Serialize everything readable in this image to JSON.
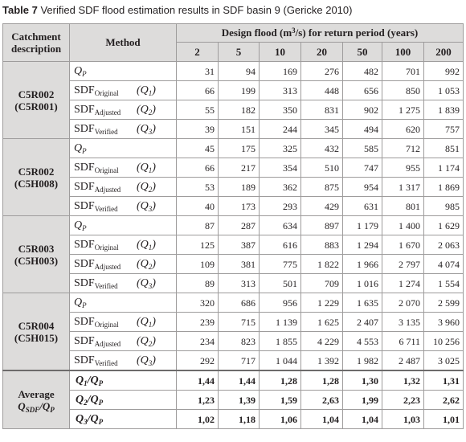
{
  "caption": {
    "label": "Table 7",
    "text": "Verified SDF flood estimation results in SDF basin 9 (Gericke 2010)"
  },
  "header": {
    "catchment": "Catchment description",
    "method": "Method",
    "design_flood_pre": "Design flood (m",
    "design_flood_sup": "3",
    "design_flood_post": "/s) for return period (years)",
    "periods": [
      "2",
      "5",
      "10",
      "20",
      "50",
      "100",
      "200"
    ]
  },
  "methods": {
    "qp": {
      "main": "Q",
      "sub": "P"
    },
    "original": {
      "main": "SDF",
      "sub": "Original",
      "q": "(Q",
      "qsub": "1",
      "qclose": ")"
    },
    "adjusted": {
      "main": "SDF",
      "sub": "Adjusted",
      "q": "(Q",
      "qsub": "2",
      "qclose": ")"
    },
    "verified": {
      "main": "SDF",
      "sub": "Verified",
      "q": "(Q",
      "qsub": "3",
      "qclose": ")"
    }
  },
  "groups": [
    {
      "name": "C5R002",
      "alt": "(C5R001)",
      "qp": [
        "31",
        "94",
        "169",
        "276",
        "482",
        "701",
        "992"
      ],
      "original": [
        "66",
        "199",
        "313",
        "448",
        "656",
        "850",
        "1 053"
      ],
      "adjusted": [
        "55",
        "182",
        "350",
        "831",
        "902",
        "1 275",
        "1 839"
      ],
      "verified": [
        "39",
        "151",
        "244",
        "345",
        "494",
        "620",
        "757"
      ]
    },
    {
      "name": "C5R002",
      "alt": "(C5H008)",
      "qp": [
        "45",
        "175",
        "325",
        "432",
        "585",
        "712",
        "851"
      ],
      "original": [
        "66",
        "217",
        "354",
        "510",
        "747",
        "955",
        "1 174"
      ],
      "adjusted": [
        "53",
        "189",
        "362",
        "875",
        "954",
        "1 317",
        "1 869"
      ],
      "verified": [
        "40",
        "173",
        "293",
        "429",
        "631",
        "801",
        "985"
      ]
    },
    {
      "name": "C5R003",
      "alt": "(C5H003)",
      "qp": [
        "87",
        "287",
        "634",
        "897",
        "1 179",
        "1 400",
        "1 629"
      ],
      "original": [
        "125",
        "387",
        "616",
        "883",
        "1 294",
        "1 670",
        "2 063"
      ],
      "adjusted": [
        "109",
        "381",
        "775",
        "1 822",
        "1 966",
        "2 797",
        "4 074"
      ],
      "verified": [
        "89",
        "313",
        "501",
        "709",
        "1 016",
        "1 274",
        "1 554"
      ]
    },
    {
      "name": "C5R004",
      "alt": "(C5H015)",
      "qp": [
        "320",
        "686",
        "956",
        "1 229",
        "1 635",
        "2 070",
        "2 599"
      ],
      "original": [
        "239",
        "715",
        "1 139",
        "1 625",
        "2 407",
        "3 135",
        "3 960"
      ],
      "adjusted": [
        "234",
        "823",
        "1 855",
        "4 229",
        "4 553",
        "6 711",
        "10 256"
      ],
      "verified": [
        "292",
        "717",
        "1 044",
        "1 392",
        "1 982",
        "2 487",
        "3 025"
      ]
    }
  ],
  "average": {
    "label_top": "Average",
    "label_main": "Q",
    "label_sub": "SDF",
    "label_slash": "/Q",
    "label_sub2": "P",
    "rows": [
      {
        "num": "Q",
        "num_sub": "1",
        "den": "/Q",
        "den_sub": "P",
        "values": [
          "1,44",
          "1,44",
          "1,28",
          "1,28",
          "1,30",
          "1,32",
          "1,31"
        ]
      },
      {
        "num": "Q",
        "num_sub": "2",
        "den": "/Q",
        "den_sub": "P",
        "values": [
          "1,23",
          "1,39",
          "1,59",
          "2,63",
          "1,99",
          "2,23",
          "2,62"
        ]
      },
      {
        "num": "Q",
        "num_sub": "3",
        "den": "/Q",
        "den_sub": "P",
        "values": [
          "1,02",
          "1,18",
          "1,06",
          "1,04",
          "1,04",
          "1,03",
          "1,01"
        ]
      }
    ]
  }
}
